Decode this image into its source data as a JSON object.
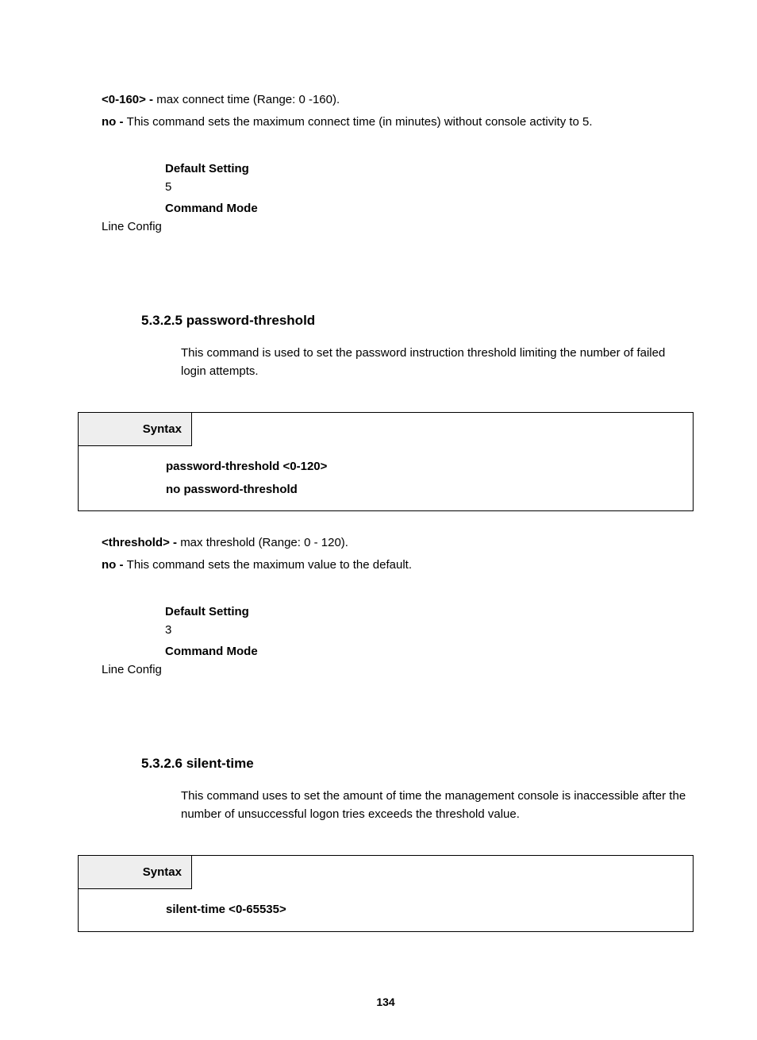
{
  "section1": {
    "param1_bold": "<0-160> - ",
    "param1_text": "max connect time (Range: 0 -160).",
    "param2_bold": "no - ",
    "param2_text": "This command sets the maximum connect time (in minutes) without console activity to 5.",
    "default_setting_label": "Default Setting",
    "default_setting_value": "5",
    "command_mode_label": "Command Mode",
    "command_mode_value": "Line Config"
  },
  "section2": {
    "heading": "5.3.2.5 password-threshold",
    "desc": "This command is used to set the password instruction threshold limiting the number of failed login attempts.",
    "syntax_label": "Syntax",
    "syntax_line1": "password-threshold <0-120>",
    "syntax_line2": "no password-threshold",
    "param1_bold": "<threshold> - ",
    "param1_text": "max threshold (Range: 0 - 120).",
    "param2_bold": "no - ",
    "param2_text": "This command sets the maximum value to the default.",
    "default_setting_label": "Default Setting",
    "default_setting_value": "3",
    "command_mode_label": "Command Mode",
    "command_mode_value": "Line Config"
  },
  "section3": {
    "heading": "5.3.2.6 silent-time",
    "desc": "This command uses to set the amount of time the management console is inaccessible after the number of unsuccessful logon tries exceeds the threshold value.",
    "syntax_label": "Syntax",
    "syntax_line1": "silent-time <0-65535>"
  },
  "page_number": "134",
  "colors": {
    "text": "#000000",
    "background": "#ffffff",
    "syntax_header_bg": "#eeeeee",
    "border": "#000000"
  },
  "typography": {
    "body_fontsize": 15,
    "heading_fontsize": 17,
    "pagenum_fontsize": 14,
    "font_family": "Arial"
  }
}
